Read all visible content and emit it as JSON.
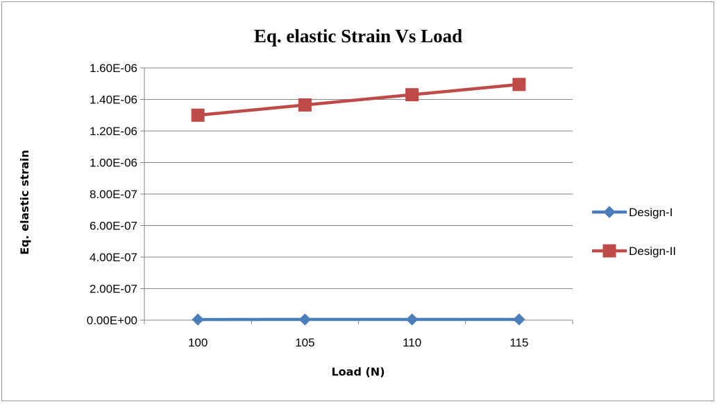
{
  "chart_data": {
    "type": "line",
    "title": "Eq. elastic Strain Vs Load",
    "xlabel": "Load (N)",
    "ylabel": "Eq. elastic strain",
    "categories": [
      "100",
      "105",
      "110",
      "115"
    ],
    "y_ticks": [
      "0.00E+00",
      "2.00E-07",
      "4.00E-07",
      "6.00E-07",
      "8.00E-07",
      "1.00E-06",
      "1.20E-06",
      "1.40E-06",
      "1.60E-06"
    ],
    "ylim": [
      0,
      1.6e-06
    ],
    "grid": true,
    "legend_position": "right",
    "series": [
      {
        "name": "Design-I",
        "values": [
          4e-09,
          4.2e-09,
          4.4e-09,
          4.6e-09
        ],
        "color": "#4a7ebb",
        "marker": "diamond"
      },
      {
        "name": "Design-II",
        "values": [
          1.3e-06,
          1.365e-06,
          1.43e-06,
          1.495e-06
        ],
        "color": "#be4b48",
        "marker": "square"
      }
    ]
  }
}
